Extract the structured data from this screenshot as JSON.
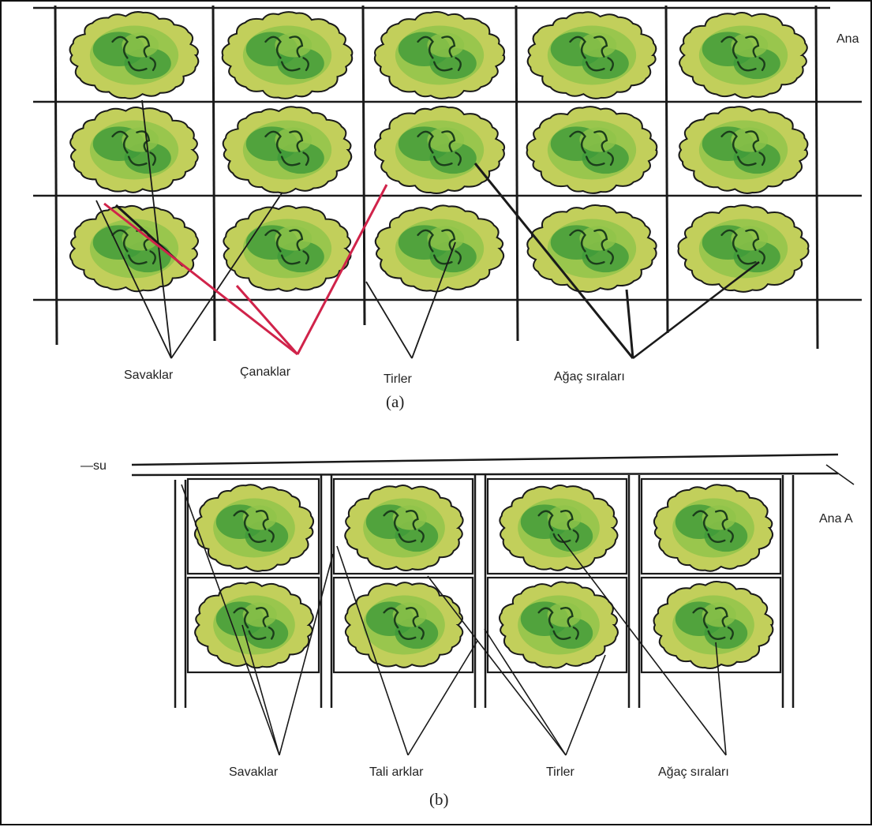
{
  "diagram_a": {
    "caption": "(a)",
    "corner_label": "Ana",
    "labels": {
      "weirs": "Savaklar",
      "basins": "Çanaklar",
      "ridges": "Tirler",
      "tree_rows": "Ağaç sıraları"
    }
  },
  "diagram_b": {
    "caption": "(b)",
    "water_label": "—su",
    "corner_label": "Ana A",
    "labels": {
      "weirs": "Savaklar",
      "laterals": "Tali arklar",
      "ridges": "Tirler",
      "tree_rows": "Ağaç sıraları"
    }
  },
  "colors": {
    "line": "#1a1a1a",
    "pointer_red": "#d0234a",
    "canopy_light": "#c2cf5b",
    "canopy_mid": "#8ec34a",
    "canopy_dark": "#3f9a3a",
    "branch": "#1b3d1b"
  }
}
